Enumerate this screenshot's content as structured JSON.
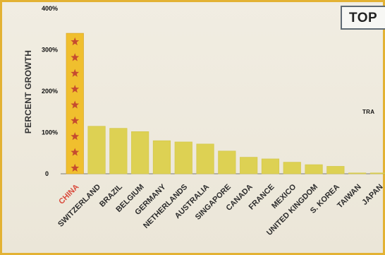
{
  "title": {
    "visible_text": "TOP"
  },
  "annotation": {
    "visible_text": "TRA"
  },
  "chart_data": {
    "type": "bar",
    "ylabel": "PERCENT GROWTH",
    "ylim": [
      0,
      400
    ],
    "y_ticks": [
      {
        "value": 400,
        "label": "400%"
      },
      {
        "value": 300,
        "label": "300%"
      },
      {
        "value": 200,
        "label": "200%"
      },
      {
        "value": 100,
        "label": "100%"
      },
      {
        "value": 0,
        "label": "0"
      }
    ],
    "categories": [
      "CHINA",
      "SWITZERLAND",
      "BRAZIL",
      "BELGIUM",
      "GERMANY",
      "NETHERLANDS",
      "AUSTRALIA",
      "SINGAPORE",
      "CANADA",
      "FRANCE",
      "MEXICO",
      "UNITED KINGDOM",
      "S. KOREA",
      "TAIWAN",
      "JAPAN"
    ],
    "values": [
      340,
      115,
      110,
      102,
      80,
      77,
      72,
      55,
      40,
      36,
      28,
      22,
      18,
      2,
      2
    ],
    "highlight": {
      "category": "CHINA",
      "bar_color": "#f0bf2e",
      "label_color": "#d94a3c",
      "star_color": "#c64b2f",
      "stars": 9
    },
    "bar_color": "#ddd153",
    "grid": false,
    "legend": "none"
  }
}
